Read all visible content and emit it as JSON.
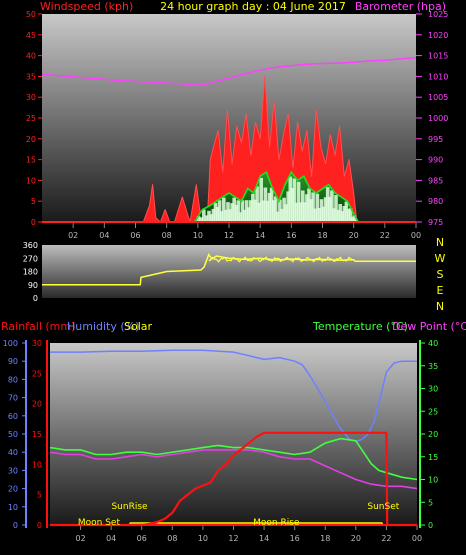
{
  "header": {
    "left_label": "Windspeed (kph)",
    "title": "24 hour graph day : 04 June 2017",
    "right_label": "Barometer (hpa)"
  },
  "colors": {
    "windspeed": "#ff2020",
    "gust_avg": "#20e020",
    "wind_dark": "#0a3a0a",
    "wind_light": "#e0ffe0",
    "barometer": "#ff40ff",
    "title": "#ffff00",
    "winddir": "#ffff40",
    "rain": "#ff1010",
    "humidity": "#7080ff",
    "temperature": "#40ff40",
    "dewpoint": "#e040e0",
    "solar": "#ffff00"
  },
  "chart_data": [
    {
      "type": "line",
      "name": "wind-barometer",
      "x_ticks": [
        "02",
        "04",
        "06",
        "08",
        "10",
        "12",
        "14",
        "16",
        "18",
        "20",
        "22",
        "00"
      ],
      "y_left": {
        "label": "Windspeed (kph)",
        "ticks": [
          "0",
          "5",
          "10",
          "15",
          "20",
          "25",
          "30",
          "35",
          "40",
          "45",
          "50"
        ],
        "range": [
          0,
          50
        ]
      },
      "y_right": {
        "label": "Barometer (hpa)",
        "ticks": [
          "975",
          "980",
          "985",
          "990",
          "995",
          "1000",
          "1005",
          "1010",
          "1015",
          "1020",
          "1025"
        ],
        "range": [
          975,
          1025
        ]
      },
      "series": [
        {
          "name": "Barometer (hpa)",
          "axis": "right",
          "x": [
            0,
            1,
            2,
            3,
            4,
            5,
            6,
            7,
            8,
            9,
            9.5,
            10,
            10.5,
            11,
            12,
            13,
            14,
            15,
            16,
            17,
            18,
            19,
            20,
            21,
            22,
            23,
            24
          ],
          "y": [
            1010.5,
            1010.2,
            1009.9,
            1009.6,
            1009.3,
            1009.0,
            1008.8,
            1008.6,
            1008.4,
            1008.2,
            1008.0,
            1007.9,
            1008.1,
            1008.6,
            1009.6,
            1010.6,
            1011.5,
            1012.2,
            1012.6,
            1012.9,
            1013.1,
            1013.2,
            1013.4,
            1013.7,
            1013.9,
            1014.2,
            1014.5
          ]
        },
        {
          "name": "Windspeed peaks",
          "x": [
            0,
            6.5,
            6.9,
            7.1,
            7.3,
            7.6,
            7.9,
            8.2,
            8.5,
            9.0,
            9.5,
            9.9,
            10.2,
            10.6,
            10.8,
            11.0,
            11.3,
            11.6,
            11.9,
            12.2,
            12.5,
            12.8,
            13.1,
            13.4,
            13.7,
            14.0,
            14.3,
            14.6,
            14.9,
            15.2,
            15.5,
            15.8,
            16.1,
            16.4,
            16.7,
            17.0,
            17.3,
            17.6,
            17.9,
            18.2,
            18.5,
            18.8,
            19.1,
            19.4,
            19.7,
            20.0,
            20.2,
            24
          ],
          "y": [
            0,
            0,
            4,
            9,
            1,
            0,
            3,
            0,
            0,
            6,
            0,
            9,
            1,
            0,
            15,
            18,
            22,
            12,
            27,
            14,
            23,
            19,
            26,
            16,
            24,
            20,
            35,
            18,
            29,
            15,
            21,
            26,
            13,
            24,
            17,
            22,
            11,
            27,
            18,
            14,
            21,
            16,
            23,
            11,
            15,
            7,
            0,
            0
          ]
        },
        {
          "name": "Gust average",
          "x": [
            0,
            9.8,
            10.3,
            10.8,
            11.2,
            11.6,
            12.0,
            12.4,
            12.8,
            13.2,
            13.6,
            14.0,
            14.4,
            14.8,
            15.2,
            15.6,
            16.0,
            16.4,
            16.8,
            17.2,
            17.6,
            18.0,
            18.4,
            18.8,
            19.2,
            19.6,
            20.0,
            20.3,
            24
          ],
          "y": [
            0,
            0,
            3,
            4,
            5,
            6,
            7,
            6,
            5,
            8,
            7,
            11,
            12,
            8,
            5,
            9,
            12,
            10,
            11,
            8,
            7,
            8,
            9,
            7,
            6,
            5,
            2,
            0,
            0
          ]
        }
      ]
    },
    {
      "type": "line",
      "name": "wind-direction",
      "y_ticks": [
        "360",
        "270",
        "180",
        "90",
        "0"
      ],
      "right_labels": [
        "N",
        "W",
        "S",
        "E",
        "N"
      ],
      "range": [
        0,
        360
      ],
      "series": [
        {
          "name": "Wind direction",
          "x": [
            0,
            6.3,
            6.35,
            8.0,
            10.2,
            10.4,
            10.7,
            10.9,
            11.2,
            12,
            13,
            14,
            15,
            16,
            17,
            18,
            19,
            20,
            20.1,
            24
          ],
          "y": [
            90,
            90,
            140,
            180,
            190,
            210,
            295,
            265,
            285,
            270,
            262,
            270,
            258,
            265,
            258,
            262,
            256,
            260,
            250,
            250
          ]
        }
      ]
    },
    {
      "type": "line",
      "name": "rain-humidity-temperature",
      "labels": {
        "rainfall": "Rainfall (mm)",
        "humidity": "Humidity (%)",
        "solar": "Solar",
        "temperature": "Temperature (°C)",
        "dewpoint": "Dew Point (°C)"
      },
      "hum_axis": {
        "ticks": [
          "0",
          "10",
          "20",
          "30",
          "40",
          "50",
          "60",
          "70",
          "80",
          "90",
          "100"
        ],
        "range": [
          0,
          100
        ]
      },
      "rain_axis": {
        "ticks": [
          "0",
          "5",
          "10",
          "15",
          "20",
          "25",
          "30"
        ],
        "range": [
          0,
          30
        ]
      },
      "temp_axis": {
        "ticks": [
          "0",
          "5",
          "10",
          "15",
          "20",
          "25",
          "30",
          "35",
          "40"
        ],
        "range": [
          0,
          40
        ]
      },
      "annotations": [
        {
          "text": "SunRise",
          "x": 5.2,
          "level": 2
        },
        {
          "text": "SunSet",
          "x": 21.8,
          "level": 2
        },
        {
          "text": "Moon Set",
          "x": 3.2,
          "level": 1
        },
        {
          "text": "Moon Rise",
          "x": 14.8,
          "level": 1
        }
      ],
      "series": [
        {
          "name": "Humidity",
          "axis": "hum",
          "x": [
            0,
            2,
            4,
            6,
            8,
            10,
            12,
            13,
            14,
            15,
            16,
            16.5,
            17,
            17.5,
            18,
            18.5,
            19,
            19.3,
            19.6,
            20,
            20.4,
            20.8,
            21.2,
            21.6,
            22,
            22.5,
            23,
            24
          ],
          "y": [
            95,
            95,
            95.5,
            95.5,
            96,
            96,
            95,
            93,
            91,
            92,
            90,
            88,
            82,
            75,
            68,
            60,
            53,
            50,
            47,
            46,
            47,
            50,
            57,
            70,
            84,
            89,
            90,
            90
          ]
        },
        {
          "name": "Temperature",
          "axis": "temp",
          "x": [
            0,
            1,
            2,
            3,
            4,
            5,
            6,
            7,
            8,
            9,
            10,
            11,
            12,
            13,
            14,
            15,
            16,
            17,
            17.5,
            18,
            18.5,
            19,
            20,
            20.5,
            21,
            21.5,
            22,
            23,
            24
          ],
          "y": [
            17,
            16.5,
            16.5,
            15.5,
            15.5,
            16,
            16,
            15.5,
            16,
            16.5,
            17,
            17.5,
            17,
            17,
            16.5,
            16,
            15.5,
            16,
            17,
            18,
            18.5,
            19,
            18.5,
            16,
            13.5,
            12,
            11.5,
            10.5,
            10
          ]
        },
        {
          "name": "Dew Point",
          "axis": "temp",
          "x": [
            0,
            1,
            2,
            3,
            4,
            5,
            6,
            7,
            8,
            9,
            10,
            11,
            12,
            13,
            14,
            15,
            16,
            17,
            18,
            19,
            20,
            21,
            22,
            23,
            24
          ],
          "y": [
            16,
            15.5,
            15.5,
            14.5,
            14.5,
            15,
            15.5,
            15,
            15.5,
            16,
            16.5,
            16.5,
            16.5,
            16.5,
            16,
            15,
            14.5,
            14.5,
            13,
            11.5,
            10,
            9,
            8.5,
            8.5,
            8
          ]
        },
        {
          "name": "Rainfall",
          "axis": "rain",
          "x": [
            0,
            6,
            6.5,
            7,
            7.5,
            8,
            8.5,
            9,
            9.5,
            10,
            10.5,
            11,
            11.5,
            12,
            12.5,
            13,
            13.5,
            14,
            22,
            22.05,
            24
          ],
          "y": [
            0,
            0,
            0.2,
            0.5,
            1,
            2,
            4,
            5,
            6,
            6.5,
            7,
            9,
            10,
            11.5,
            12.5,
            13.5,
            14.5,
            15.2,
            15.2,
            0,
            0
          ]
        },
        {
          "name": "Solar",
          "x": [
            0,
            5.2,
            5.25,
            21.7,
            21.75,
            24
          ],
          "y": [
            0,
            0,
            1,
            1,
            0,
            0
          ]
        }
      ]
    }
  ]
}
